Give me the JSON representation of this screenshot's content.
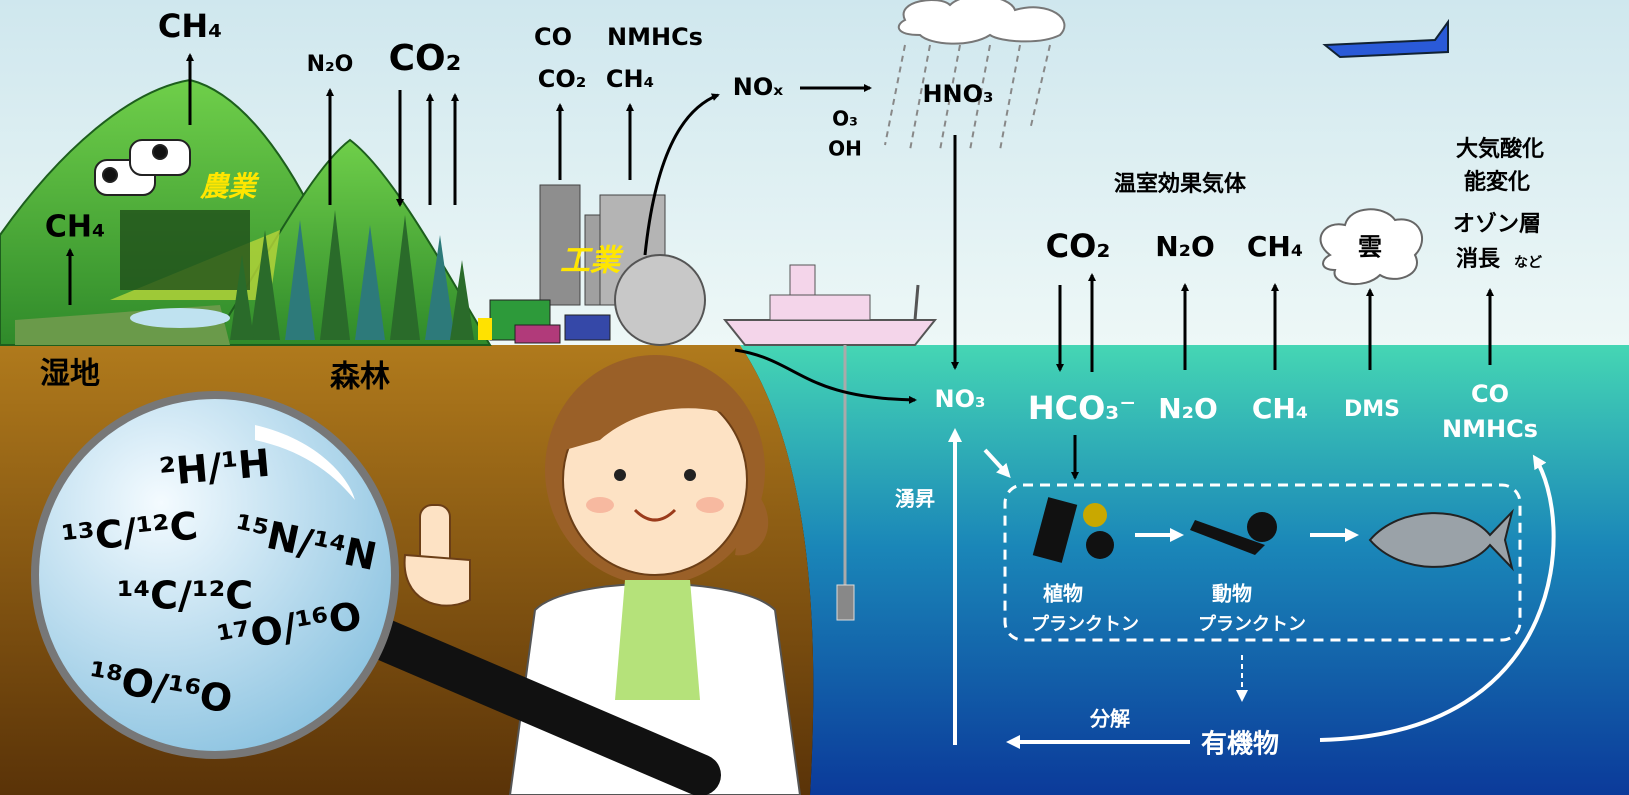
{
  "land": {
    "wetland": "湿地",
    "forest": "森林",
    "agriculture": "農業",
    "industry": "工業",
    "wetland_gas": "CH₄",
    "agriculture_gas": "CH₄",
    "forest_gases": [
      "N₂O",
      "CO₂"
    ],
    "industry_gases": [
      "CO",
      "NMHCs",
      "CO₂",
      "CH₄"
    ]
  },
  "atmosphere": {
    "nox": "NOₓ",
    "oxidants": [
      "O₃",
      "OH"
    ],
    "hno3": "HNO₃",
    "greenhouse_gases": "温室効果気体",
    "gases": [
      "CO₂",
      "N₂O",
      "CH₄"
    ],
    "cloud": "雲",
    "impacts": [
      "大気酸化",
      "能変化",
      "オゾン層",
      "消長",
      "など"
    ]
  },
  "ocean": {
    "species": [
      "NO₃",
      "HCO₃⁻",
      "N₂O",
      "CH₄",
      "DMS",
      "CO",
      "NMHCs"
    ],
    "upwelling": "湧昇",
    "phytoplankton": [
      "植物",
      "プランクトン"
    ],
    "zooplankton": [
      "動物",
      "プランクトン"
    ],
    "organic_matter": "有機物",
    "decomposition": "分解"
  },
  "isotopes": [
    "²H/¹H",
    "¹³C/¹²C",
    "¹⁵N/¹⁴N",
    "¹⁴C/¹²C",
    "¹⁷O/¹⁶O",
    "¹⁸O/¹⁶O"
  ]
}
